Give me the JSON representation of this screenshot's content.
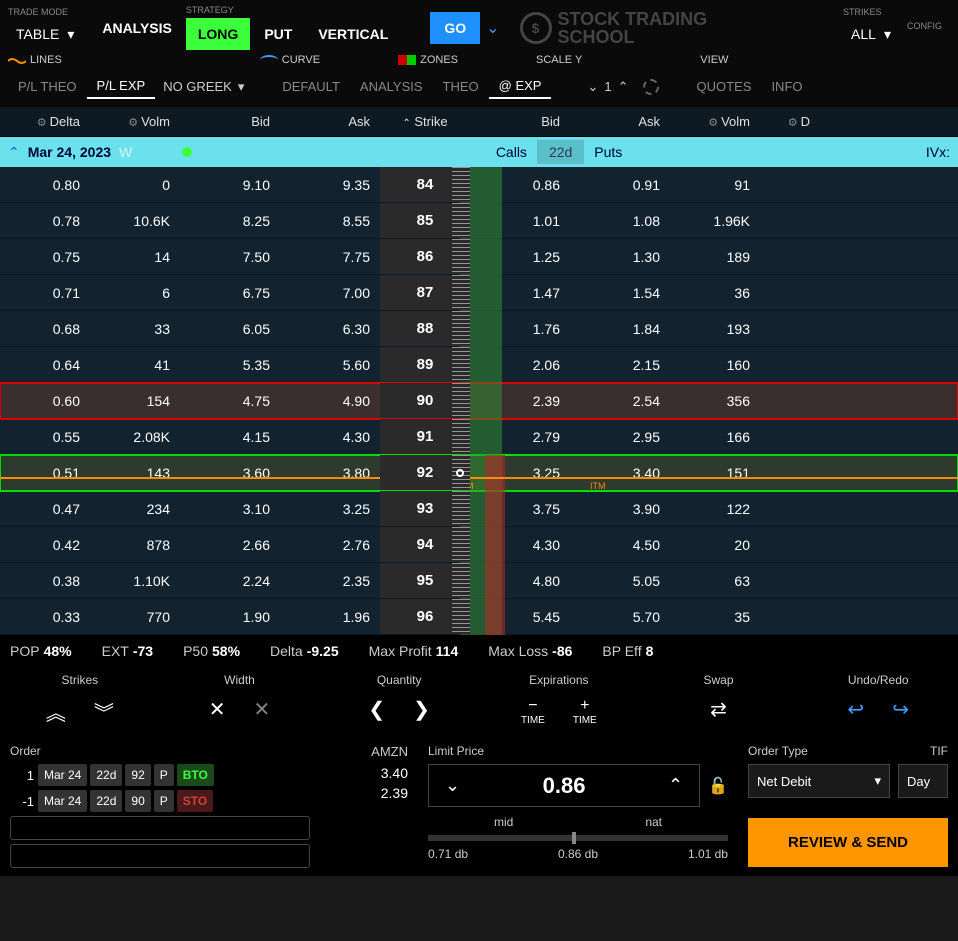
{
  "topbar": {
    "trade_mode_label": "TRADE MODE",
    "trade_mode_value": "TABLE",
    "strategy_label": "STRATEGY",
    "analysis": "ANALYSIS",
    "long": "LONG",
    "put": "PUT",
    "vertical": "VERTICAL",
    "go": "GO",
    "strikes_label": "STRIKES",
    "strikes_value": "ALL",
    "config_label": "CONFIG",
    "logo_top": "STOCK TRADING",
    "logo_bottom": "SCHOOL"
  },
  "legend": {
    "lines": "LINES",
    "curve": "CURVE",
    "zones": "ZONES",
    "scale_y": "SCALE Y",
    "view": "VIEW"
  },
  "subtabs": {
    "pl_theo": "P/L THEO",
    "pl_exp": "P/L EXP",
    "no_greek": "NO GREEK",
    "default": "DEFAULT",
    "analysis": "ANALYSIS",
    "theo": "THEO",
    "at_exp": "@ EXP",
    "scale_val": "1",
    "quotes": "QUOTES",
    "info": "INFO"
  },
  "columns": {
    "delta": "Delta",
    "volm": "Volm",
    "bid": "Bid",
    "ask": "Ask",
    "strike": "Strike",
    "volm2": "Volm"
  },
  "expiry": {
    "date": "Mar 24, 2023",
    "w": "W",
    "calls": "Calls",
    "dte": "22d",
    "puts": "Puts",
    "ivx": "IVx:"
  },
  "rows": [
    {
      "delta": "0.80",
      "volm": "0",
      "cbid": "9.10",
      "cask": "9.35",
      "strike": "84",
      "pbid": "0.86",
      "pask": "0.91",
      "pvolm": "91",
      "hl": ""
    },
    {
      "delta": "0.78",
      "volm": "10.6K",
      "cbid": "8.25",
      "cask": "8.55",
      "strike": "85",
      "pbid": "1.01",
      "pask": "1.08",
      "pvolm": "1.96K",
      "hl": ""
    },
    {
      "delta": "0.75",
      "volm": "14",
      "cbid": "7.50",
      "cask": "7.75",
      "strike": "86",
      "pbid": "1.25",
      "pask": "1.30",
      "pvolm": "189",
      "hl": ""
    },
    {
      "delta": "0.71",
      "volm": "6",
      "cbid": "6.75",
      "cask": "7.00",
      "strike": "87",
      "pbid": "1.47",
      "pask": "1.54",
      "pvolm": "36",
      "hl": ""
    },
    {
      "delta": "0.68",
      "volm": "33",
      "cbid": "6.05",
      "cask": "6.30",
      "strike": "88",
      "pbid": "1.76",
      "pask": "1.84",
      "pvolm": "193",
      "hl": ""
    },
    {
      "delta": "0.64",
      "volm": "41",
      "cbid": "5.35",
      "cask": "5.60",
      "strike": "89",
      "pbid": "2.06",
      "pask": "2.15",
      "pvolm": "160",
      "hl": ""
    },
    {
      "delta": "0.60",
      "volm": "154",
      "cbid": "4.75",
      "cask": "4.90",
      "strike": "90",
      "pbid": "2.39",
      "pask": "2.54",
      "pvolm": "356",
      "hl": "red"
    },
    {
      "delta": "0.55",
      "volm": "2.08K",
      "cbid": "4.15",
      "cask": "4.30",
      "strike": "91",
      "pbid": "2.79",
      "pask": "2.95",
      "pvolm": "166",
      "hl": ""
    },
    {
      "delta": "0.51",
      "volm": "143",
      "cbid": "3.60",
      "cask": "3.80",
      "strike": "92",
      "pbid": "3.25",
      "pask": "3.40",
      "pvolm": "151",
      "hl": "green"
    },
    {
      "delta": "0.47",
      "volm": "234",
      "cbid": "3.10",
      "cask": "3.25",
      "strike": "93",
      "pbid": "3.75",
      "pask": "3.90",
      "pvolm": "122",
      "hl": ""
    },
    {
      "delta": "0.42",
      "volm": "878",
      "cbid": "2.66",
      "cask": "2.76",
      "strike": "94",
      "pbid": "4.30",
      "pask": "4.50",
      "pvolm": "20",
      "hl": ""
    },
    {
      "delta": "0.38",
      "volm": "1.10K",
      "cbid": "2.24",
      "cask": "2.35",
      "strike": "95",
      "pbid": "4.80",
      "pask": "5.05",
      "pvolm": "63",
      "hl": ""
    },
    {
      "delta": "0.33",
      "volm": "770",
      "cbid": "1.90",
      "cask": "1.96",
      "strike": "96",
      "pbid": "5.45",
      "pask": "5.70",
      "pvolm": "35",
      "hl": ""
    }
  ],
  "stats": {
    "pop_l": "POP",
    "pop_v": "48%",
    "ext_l": "EXT",
    "ext_v": "-73",
    "p50_l": "P50",
    "p50_v": "58%",
    "delta_l": "Delta",
    "delta_v": "-9.25",
    "maxp_l": "Max Profit",
    "maxp_v": "114",
    "maxl_l": "Max Loss",
    "maxl_v": "-86",
    "bp_l": "BP Eff",
    "bp_v": "8"
  },
  "controls": {
    "strikes": "Strikes",
    "width": "Width",
    "quantity": "Quantity",
    "expirations": "Expirations",
    "swap": "Swap",
    "undo": "Undo/Redo",
    "time": "TIME"
  },
  "order": {
    "label": "Order",
    "symbol": "AMZN",
    "legs": [
      {
        "qty": "1",
        "exp": "Mar 24",
        "dte": "22d",
        "strike": "92",
        "cp": "P",
        "action": "BTO",
        "price": "3.40"
      },
      {
        "qty": "-1",
        "exp": "Mar 24",
        "dte": "22d",
        "strike": "90",
        "cp": "P",
        "action": "STO",
        "price": "2.39"
      }
    ],
    "limit_label": "Limit Price",
    "limit_value": "0.86",
    "mid_l": "mid",
    "nat_l": "nat",
    "p_low": "0.71 db",
    "p_mid": "0.86 db",
    "p_high": "1.01 db",
    "ot_label": "Order Type",
    "ot_value": "Net Debit",
    "tif_label": "TIF",
    "tif_value": "Day",
    "review": "REVIEW & SEND"
  },
  "itm": "ITM"
}
